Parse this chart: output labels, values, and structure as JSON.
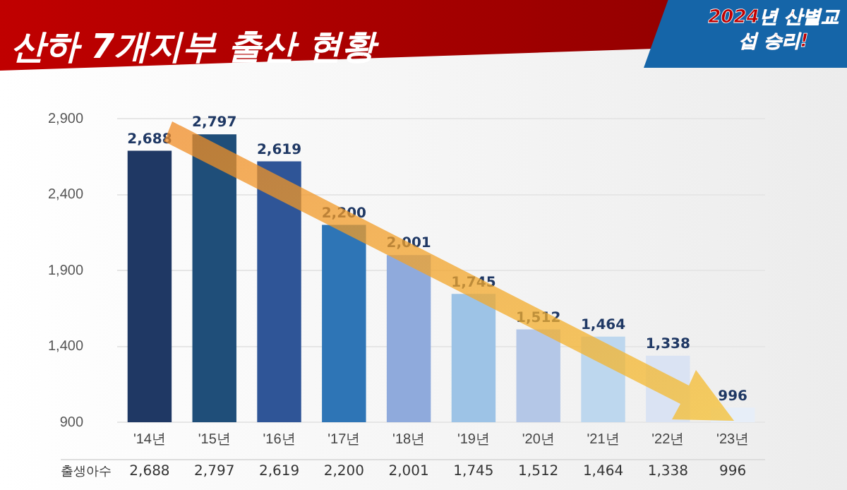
{
  "chart_data": {
    "type": "bar",
    "title": "산하 7개지부 출산 현황",
    "categories": [
      "'14년",
      "'15년",
      "'16년",
      "'17년",
      "'18년",
      "'19년",
      "'20년",
      "'21년",
      "'22년",
      "'23년"
    ],
    "values": [
      2688,
      2797,
      2619,
      2200,
      2001,
      1745,
      1512,
      1464,
      1338,
      996
    ],
    "colors": [
      "#1f3864",
      "#1f4e79",
      "#2f5597",
      "#2e75b6",
      "#8faadc",
      "#9dc3e6",
      "#b4c7e7",
      "#bdd7ee",
      "#dae3f3",
      "#e7eef8"
    ],
    "value_labels": [
      "2,688",
      "2,797",
      "2,619",
      "2,200",
      "2,001",
      "1,745",
      "1,512",
      "1,464",
      "1,338",
      "996"
    ],
    "ylim": [
      900,
      2900
    ],
    "yticks": [
      900,
      {
        "value": 1400,
        "label": "1,400"
      },
      {
        "value": 1900,
        "label": "1,900"
      },
      {
        "value": 2400,
        "label": "2,400"
      },
      {
        "value": 2900,
        "label": "2,900"
      }
    ],
    "grid": "y",
    "legend": false,
    "annotations": [
      "2024년 산별교섭 승리!",
      "출생아수"
    ]
  }
}
